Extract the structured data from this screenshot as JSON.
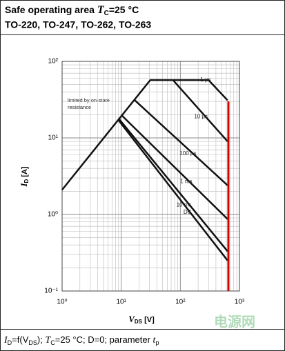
{
  "chart_data": {
    "type": "line",
    "title": [
      "Safe operating area ",
      "T",
      "C",
      "=25 °C"
    ],
    "subtitle": "TO-220, TO-247, TO-262, TO-263",
    "xlabel": [
      "V",
      "DS",
      " [V]"
    ],
    "ylabel": [
      "I",
      "D",
      " [A]"
    ],
    "caption": [
      "I",
      "D",
      "=f(V",
      "DS",
      "); ",
      "T",
      "C",
      "=25 °C; D=0; parameter ",
      "t",
      "p"
    ],
    "annotation": [
      "limited by on-state",
      "resistance"
    ],
    "log_x": true,
    "log_y": true,
    "grid": true,
    "xlim": [
      1,
      1000
    ],
    "ylim": [
      0.1,
      100
    ],
    "xticks": [
      {
        "value": 1,
        "label": "10⁰"
      },
      {
        "value": 10,
        "label": "10¹"
      },
      {
        "value": 100,
        "label": "10²"
      },
      {
        "value": 1000,
        "label": "10³"
      }
    ],
    "yticks": [
      {
        "value": 0.1,
        "label": "10⁻¹"
      },
      {
        "value": 1,
        "label": "10⁰"
      },
      {
        "value": 10,
        "label": "10¹"
      },
      {
        "value": 100,
        "label": "10²"
      }
    ],
    "xminor": [
      2,
      3,
      4,
      5,
      6,
      7,
      8,
      9,
      20,
      30,
      40,
      50,
      60,
      70,
      80,
      90,
      200,
      300,
      400,
      500,
      600,
      700,
      800,
      900
    ],
    "yminor": [
      0.2,
      0.3,
      0.4,
      0.5,
      0.6,
      0.7,
      0.8,
      0.9,
      2,
      3,
      4,
      5,
      6,
      7,
      8,
      9,
      20,
      30,
      40,
      50,
      60,
      70,
      80,
      90
    ],
    "series": [
      {
        "name": "1 µs",
        "color": "#111111",
        "x": [
          1,
          31,
          300,
          630
        ],
        "values": [
          2.1,
          57,
          57,
          31
        ]
      },
      {
        "name": "10 µs",
        "color": "#111111",
        "x": [
          75,
          630
        ],
        "values": [
          57,
          9
        ]
      },
      {
        "name": "100 µs",
        "color": "#111111",
        "x": [
          17,
          630
        ],
        "values": [
          31,
          2.4
        ]
      },
      {
        "name": "1 ms",
        "color": "#111111",
        "x": [
          10,
          630
        ],
        "values": [
          20,
          0.87
        ]
      },
      {
        "name": "10 ms",
        "color": "#111111",
        "x": [
          9,
          630
        ],
        "values": [
          18,
          0.33
        ]
      },
      {
        "name": "DC",
        "color": "#111111",
        "x": [
          9,
          630
        ],
        "values": [
          17,
          0.25
        ]
      }
    ],
    "limit_line": {
      "color": "#d40000",
      "x": [
        650,
        650
      ],
      "values": [
        0.1,
        30
      ]
    },
    "watermark": "电源网"
  }
}
